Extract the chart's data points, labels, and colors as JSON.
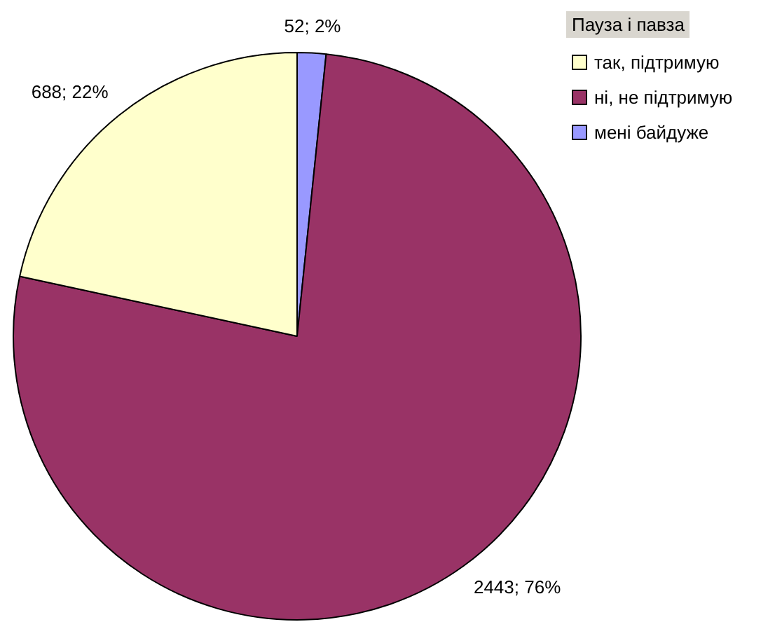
{
  "chart_data": {
    "type": "pie",
    "legend_title": "Пауза і павза",
    "legend": "top right",
    "categories": [
      "так, підтримую",
      "ні, не підтримую",
      "мені байдуже"
    ],
    "values": [
      688,
      2443,
      52
    ],
    "colors": [
      "#ffffcc",
      "#993366",
      "#9999ff"
    ],
    "value_labels": [
      "688; 22%",
      "2443; 76%",
      "52; 2%"
    ]
  }
}
